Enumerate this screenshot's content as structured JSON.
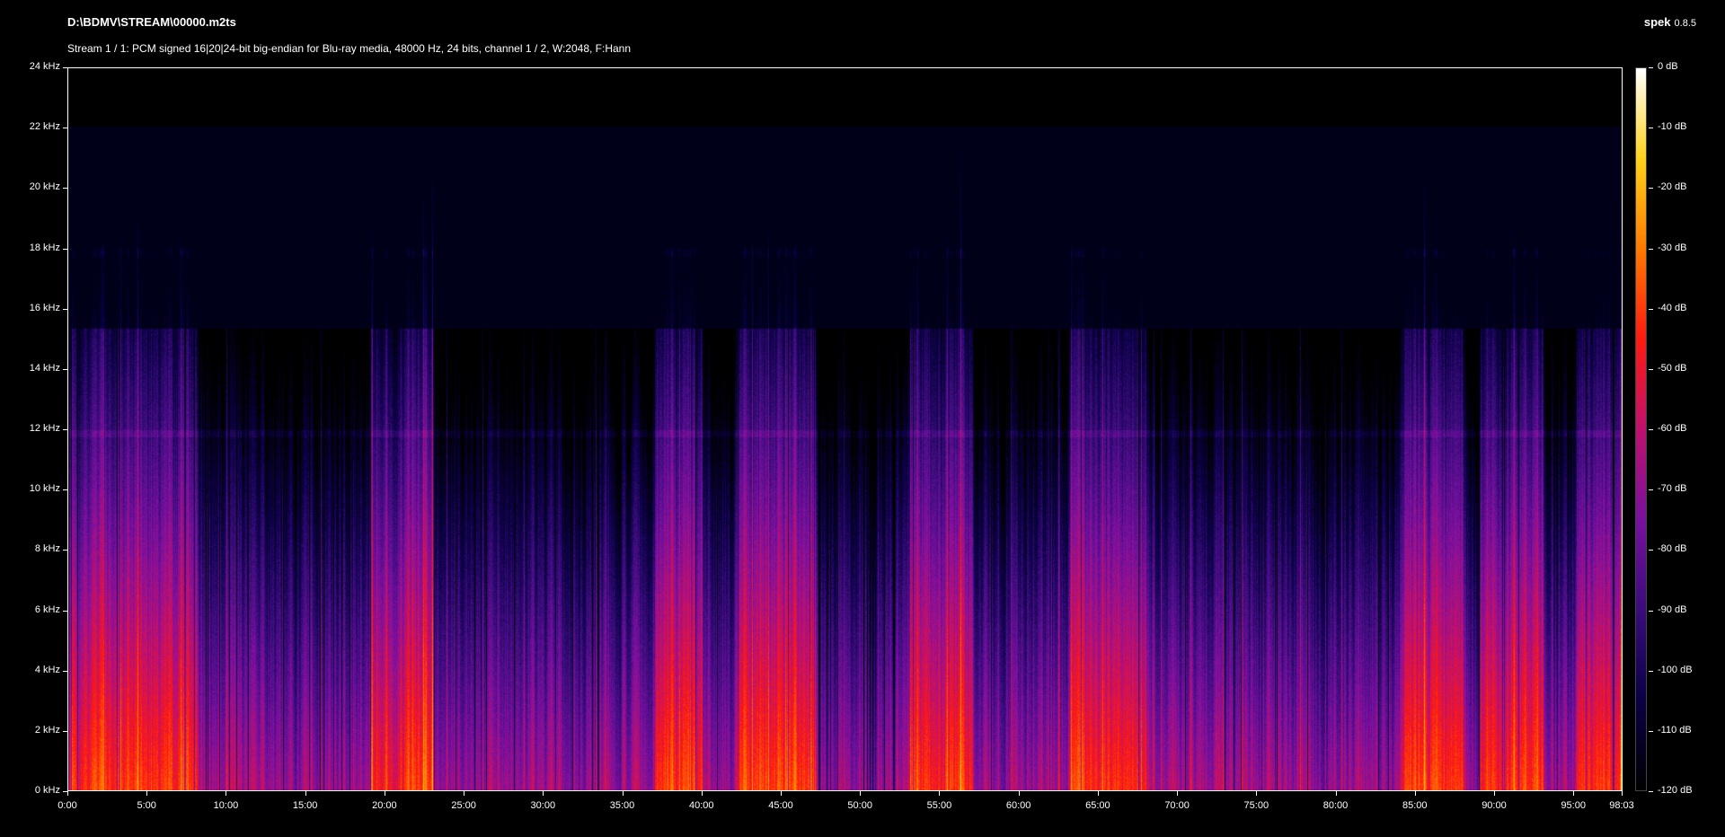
{
  "header": {
    "file_path": "D:\\BDMV\\STREAM\\00000.m2ts",
    "stream_info": "Stream 1 / 1: PCM signed 16|20|24-bit big-endian for Blu-ray media, 48000 Hz, 24 bits, channel 1 / 2, W:2048, F:Hann",
    "app_name": "spek",
    "app_version": "0.8.5"
  },
  "colors": {
    "background": "#000000",
    "axis": "#ffffff",
    "palette": [
      "#000000",
      "#0b0046",
      "#3a0c7c",
      "#7a10a0",
      "#c0106e",
      "#ff1a10",
      "#ff7a00",
      "#ffd21a",
      "#ffffff"
    ]
  },
  "spectrogram": {
    "freq_axis_labels": [
      "24 kHz",
      "22 kHz",
      "20 kHz",
      "18 kHz",
      "16 kHz",
      "14 kHz",
      "12 kHz",
      "10 kHz",
      "8 kHz",
      "6 kHz",
      "4 kHz",
      "2 kHz",
      "0 kHz"
    ],
    "time_axis_labels": [
      "0:00",
      "5:00",
      "10:00",
      "15:00",
      "20:00",
      "25:00",
      "30:00",
      "35:00",
      "40:00",
      "45:00",
      "50:00",
      "55:00",
      "60:00",
      "65:00",
      "70:00",
      "75:00",
      "80:00",
      "85:00",
      "90:00",
      "95:00",
      "98:03"
    ],
    "time_axis_minutes": [
      0,
      5,
      10,
      15,
      20,
      25,
      30,
      35,
      40,
      45,
      50,
      55,
      60,
      65,
      70,
      75,
      80,
      85,
      90,
      95,
      98.05
    ],
    "duration_minutes": 98.05,
    "max_freq_khz": 24
  },
  "colorbar": {
    "labels": [
      "0 dB",
      "-10 dB",
      "-20 dB",
      "-30 dB",
      "-40 dB",
      "-50 dB",
      "-60 dB",
      "-70 dB",
      "-80 dB",
      "-90 dB",
      "-100 dB",
      "-110 dB",
      "-120 dB"
    ]
  }
}
